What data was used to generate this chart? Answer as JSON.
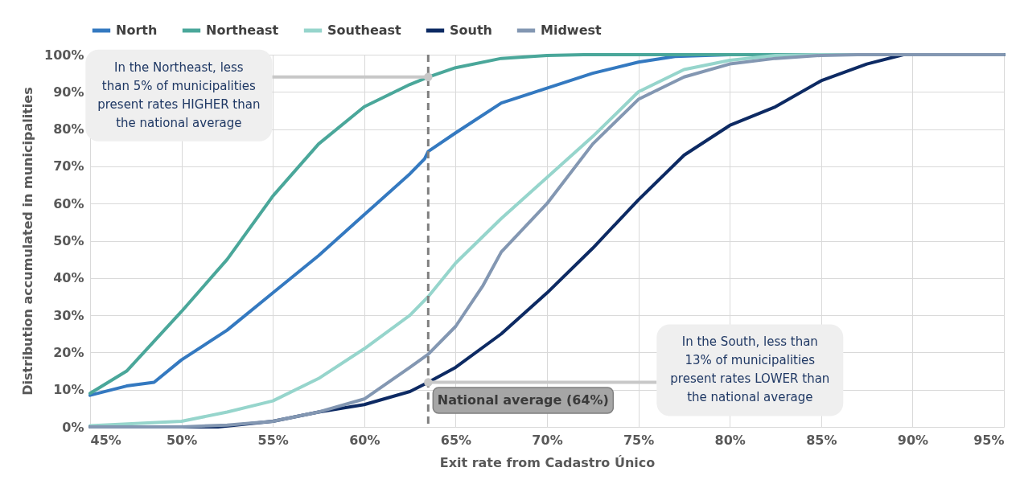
{
  "chart_data": {
    "type": "line",
    "xlabel": "Exit rate from Cadastro Único",
    "ylabel": "Distribution accumulated in municipalities",
    "xlim": [
      45,
      95
    ],
    "ylim": [
      0,
      100
    ],
    "xticks": [
      {
        "value": 45,
        "label": "45%"
      },
      {
        "value": 50,
        "label": "50%"
      },
      {
        "value": 55,
        "label": "55%"
      },
      {
        "value": 60,
        "label": "60%"
      },
      {
        "value": 65,
        "label": "65%"
      },
      {
        "value": 70,
        "label": "70%"
      },
      {
        "value": 75,
        "label": "75%"
      },
      {
        "value": 80,
        "label": "80%"
      },
      {
        "value": 85,
        "label": "85%"
      },
      {
        "value": 90,
        "label": "90%"
      },
      {
        "value": 95,
        "label": "95%"
      }
    ],
    "yticks": [
      {
        "value": 0,
        "label": "0%"
      },
      {
        "value": 10,
        "label": "10%"
      },
      {
        "value": 20,
        "label": "20%"
      },
      {
        "value": 30,
        "label": "30%"
      },
      {
        "value": 40,
        "label": "40%"
      },
      {
        "value": 50,
        "label": "50%"
      },
      {
        "value": 60,
        "label": "60%"
      },
      {
        "value": 70,
        "label": "70%"
      },
      {
        "value": 80,
        "label": "80%"
      },
      {
        "value": 90,
        "label": "90%"
      },
      {
        "value": 100,
        "label": "100%"
      }
    ],
    "grid": true,
    "legend": "top",
    "line_style": "solid",
    "series": [
      {
        "name": "North",
        "color": "#3479c0",
        "x": [
          45,
          47,
          48.5,
          50,
          52.5,
          55,
          57.5,
          60,
          62.5,
          63.3,
          63.5,
          65,
          67.5,
          70,
          72.5,
          75,
          77,
          80,
          95
        ],
        "values": [
          8.5,
          11,
          12,
          18,
          26,
          36,
          46,
          57,
          68,
          72,
          74,
          79,
          87,
          91,
          95,
          98,
          99.5,
          100,
          100
        ]
      },
      {
        "name": "Northeast",
        "color": "#4aa79a",
        "x": [
          45,
          47,
          50,
          52.5,
          55,
          57.5,
          60,
          62.5,
          63.5,
          65,
          67.5,
          70,
          72,
          95
        ],
        "values": [
          9,
          15,
          31,
          45,
          62,
          76,
          86,
          92,
          94,
          96.5,
          99,
          99.8,
          100,
          100
        ]
      },
      {
        "name": "Southeast",
        "color": "#96d5cc",
        "x": [
          45,
          50,
          52.5,
          55,
          57.5,
          60,
          62.5,
          63.5,
          65,
          67.5,
          70,
          72.5,
          75,
          77.5,
          80,
          82.5,
          85,
          95
        ],
        "values": [
          0.3,
          1.5,
          4,
          7,
          13,
          21,
          30,
          35,
          44,
          56,
          67,
          78,
          90,
          96,
          98.5,
          99.8,
          100,
          100
        ]
      },
      {
        "name": "South",
        "color": "#0d2a63",
        "x": [
          45,
          52,
          55,
          57.5,
          60,
          62.5,
          63.5,
          65,
          67.5,
          70,
          72.5,
          75,
          77.5,
          80,
          82.5,
          85,
          87.5,
          89.5,
          95
        ],
        "values": [
          0,
          0,
          1.5,
          4,
          6,
          9.5,
          12,
          16,
          25,
          36,
          48,
          61,
          73,
          81,
          86,
          93,
          97.5,
          100,
          100
        ]
      },
      {
        "name": "Midwest",
        "color": "#8397b2",
        "x": [
          45,
          50,
          52.5,
          55,
          57.5,
          60,
          62.5,
          63.5,
          65,
          66.5,
          67.5,
          70,
          72.5,
          75,
          77.5,
          80,
          82.5,
          85,
          87,
          95
        ],
        "values": [
          0,
          0,
          0.5,
          1.5,
          4,
          7.5,
          16,
          19.5,
          27,
          38,
          47,
          60,
          76,
          88,
          94,
          97.5,
          99,
          99.8,
          100,
          100
        ]
      }
    ],
    "ref_lines": [
      {
        "axis": "x",
        "value": 63.5,
        "label": "National average (64%)",
        "color": "#7f7f7f",
        "line_style": "dashed"
      }
    ],
    "annotations": [
      {
        "text": "In the Northeast, less than 5% of municipalities present rates HIGHER than the national average",
        "x": 63.5,
        "y": 94
      },
      {
        "text": "In the South, less than 13% of municipalities present rates LOWER than the national average",
        "x": 63.5,
        "y": 12
      }
    ]
  }
}
